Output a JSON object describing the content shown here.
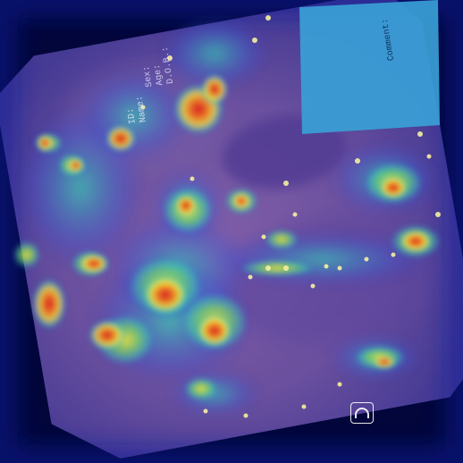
{
  "image": {
    "kind": "endoscopy frame with attention heatmap overlay",
    "background_color": "#02063a",
    "tissue_color": "#8a5f9e",
    "heatmap_colors": {
      "low": "#2636c8",
      "mid": "#35d4b4",
      "high_yellow": "#f6e03a",
      "high_orange": "#f07a22",
      "peak_red": "#d4181e"
    }
  },
  "overlay_text": {
    "id_label": "ID:",
    "name_label": "Name:",
    "sex_label": "Sex:",
    "age_label": "Age:",
    "dob_label": "D.O.B.:",
    "comment_label": "Comment:"
  },
  "icons": {
    "scope_icon": "endoscope-orientation-icon"
  }
}
